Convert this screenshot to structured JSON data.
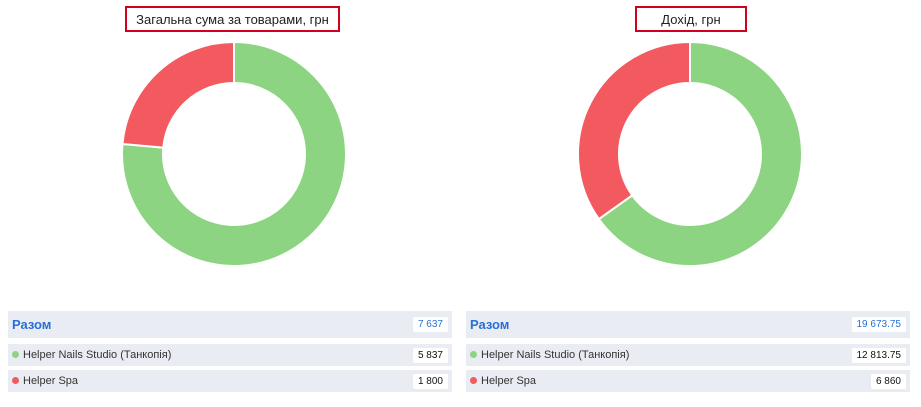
{
  "chart_data": [
    {
      "type": "donut",
      "title": "Загальна сума за товарами, грн",
      "categories": [
        "Helper Nails Studio (Танкопія)",
        "Helper Spa"
      ],
      "values": [
        5837,
        1800
      ],
      "value_labels": [
        "5 837",
        "1 800"
      ],
      "colors": [
        "#8dd482",
        "#f25a60"
      ],
      "total_name": "Разом",
      "total": 7637,
      "total_label": "7 637"
    },
    {
      "type": "donut",
      "title": "Дохід, грн",
      "categories": [
        "Helper Nails Studio (Танкопія)",
        "Helper Spa"
      ],
      "values": [
        12813.75,
        6860
      ],
      "value_labels": [
        "12 813.75",
        "6 860"
      ],
      "colors": [
        "#8dd482",
        "#f25a60"
      ],
      "total_name": "Разом",
      "total": 19673.75,
      "total_label": "19 673.75"
    }
  ]
}
